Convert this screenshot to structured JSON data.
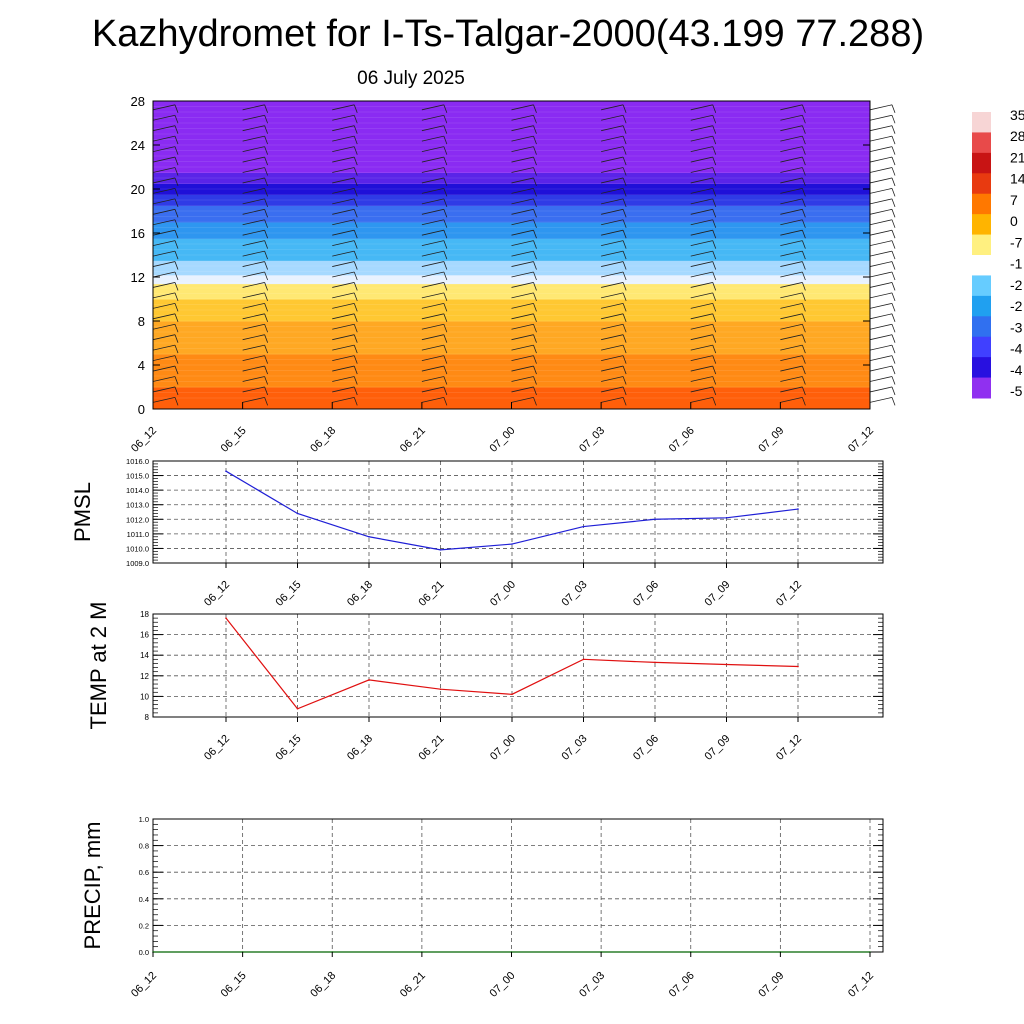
{
  "title": "Kazhydromet for I-Ts-Talgar-2000(43.199 77.288)",
  "subtitle": "06 July 2025",
  "colors": {
    "pmsl_line": "#1f1fd6",
    "temp_line": "#e01010",
    "precip_line": "#006400",
    "grid": "#555555"
  },
  "chart_data": [
    {
      "type": "heatmap",
      "name": "vertical-section",
      "x_ticks": [
        "06_12",
        "06_15",
        "06_18",
        "06_21",
        "07_00",
        "07_03",
        "07_06",
        "07_09",
        "07_12"
      ],
      "y_ticks": [
        0,
        4,
        8,
        12,
        16,
        20,
        24,
        28
      ],
      "ylim": [
        0,
        28
      ],
      "colorbar_labels": [
        "35",
        "28",
        "21",
        "14",
        "7",
        "0",
        "-7",
        "-1",
        "-2",
        "-2",
        "-3",
        "-4",
        "-4",
        "-5"
      ],
      "colorbar_colors": [
        "#f7d5d5",
        "#e84a4a",
        "#c81414",
        "#e83a10",
        "#ff7800",
        "#ffb400",
        "#fff080",
        "#ffffff",
        "#66ccff",
        "#20a0f0",
        "#3070f0",
        "#4040ff",
        "#2810e0",
        "#9030f0"
      ],
      "layers": [
        {
          "from": 0,
          "to": 2,
          "color": "#ff5f0a"
        },
        {
          "from": 2,
          "to": 5,
          "color": "#ff8a14"
        },
        {
          "from": 5,
          "to": 8,
          "color": "#ffa823"
        },
        {
          "from": 8,
          "to": 10,
          "color": "#ffc832"
        },
        {
          "from": 10,
          "to": 11.4,
          "color": "#ffe873"
        },
        {
          "from": 11.4,
          "to": 12.2,
          "color": "#e8f2ff"
        },
        {
          "from": 12.2,
          "to": 13.5,
          "color": "#a6d9ff"
        },
        {
          "from": 13.5,
          "to": 15.5,
          "color": "#46b8f5"
        },
        {
          "from": 15.5,
          "to": 17,
          "color": "#2e96f0"
        },
        {
          "from": 17,
          "to": 18.5,
          "color": "#3a6ef0"
        },
        {
          "from": 18.5,
          "to": 19.5,
          "color": "#2f3be6"
        },
        {
          "from": 19.5,
          "to": 20.5,
          "color": "#1f10d8"
        },
        {
          "from": 20.5,
          "to": 21.5,
          "color": "#5a24e8"
        },
        {
          "from": 21.5,
          "to": 28,
          "color": "#8a2bf2"
        }
      ]
    },
    {
      "type": "line",
      "name": "pmsl",
      "ylabel": "PMSL",
      "categories": [
        "06_12",
        "06_15",
        "06_18",
        "06_21",
        "07_00",
        "07_03",
        "07_06",
        "07_09",
        "07_12"
      ],
      "values": [
        1015.3,
        1012.4,
        1010.8,
        1009.9,
        1010.3,
        1011.5,
        1012.0,
        1012.1,
        1012.7
      ],
      "y_ticks": [
        "1009.0",
        "1010.0",
        "1011.0",
        "1012.0",
        "1013.0",
        "1014.0",
        "1015.0",
        "1016.0"
      ],
      "ylim": [
        1009.0,
        1016.0
      ]
    },
    {
      "type": "line",
      "name": "temp",
      "ylabel": "TEMP at 2 M",
      "categories": [
        "06_12",
        "06_15",
        "06_18",
        "06_21",
        "07_00",
        "07_03",
        "07_06",
        "07_09",
        "07_12"
      ],
      "values": [
        17.6,
        8.8,
        11.6,
        10.7,
        10.2,
        13.6,
        13.3,
        13.1,
        12.9
      ],
      "y_ticks": [
        "8",
        "10",
        "12",
        "14",
        "16",
        "18"
      ],
      "ylim": [
        8,
        18
      ]
    },
    {
      "type": "line",
      "name": "precip",
      "ylabel": "PRECIP, mm",
      "x_ticks": [
        "06_12",
        "06_15",
        "06_18",
        "06_21",
        "07_00",
        "07_03",
        "07_06",
        "07_09",
        "07_12"
      ],
      "values": [
        0,
        0,
        0,
        0,
        0,
        0,
        0,
        0,
        0
      ],
      "y_ticks": [
        "0.0",
        "0.2",
        "0.4",
        "0.6",
        "0.8",
        "1.0"
      ],
      "ylim": [
        0,
        1.0
      ]
    }
  ]
}
